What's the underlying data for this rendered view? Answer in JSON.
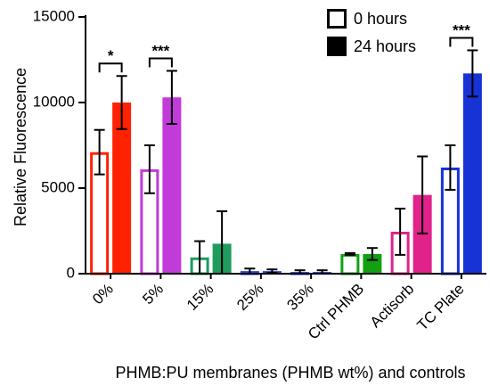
{
  "chart_data": {
    "type": "bar",
    "ylabel": "Relative Fluorescence",
    "xlabel": "PHMB:PU membranes (PHMB wt%) and controls",
    "ylim": [
      0,
      15000
    ],
    "yticks": [
      0,
      5000,
      10000,
      15000
    ],
    "grid": false,
    "legend_position": "top-right",
    "categories": [
      "0%",
      "5%",
      "15%",
      "25%",
      "35%",
      "Ctrl PHMB",
      "Actisorb",
      "TC Plate"
    ],
    "colors": [
      "#ff2200",
      "#c23ad9",
      "#1f9b5e",
      "#2b44d9",
      "#2b3fcf",
      "#12a012",
      "#e0228a",
      "#1733d6"
    ],
    "series": [
      {
        "name": "0 hours",
        "style": "hollow",
        "values": [
          7100,
          6100,
          950,
          150,
          100,
          1150,
          2450,
          6200
        ],
        "errors": [
          1300,
          1400,
          950,
          150,
          100,
          50,
          1350,
          1300
        ]
      },
      {
        "name": "24 hours",
        "style": "filled",
        "values": [
          10000,
          10300,
          1750,
          150,
          100,
          1150,
          4600,
          11700
        ],
        "errors": [
          1550,
          1550,
          1900,
          100,
          100,
          350,
          2250,
          1350
        ]
      }
    ],
    "significance": [
      {
        "category": "0%",
        "label": "*"
      },
      {
        "category": "5%",
        "label": "***"
      },
      {
        "category": "TC Plate",
        "label": "***"
      }
    ]
  }
}
